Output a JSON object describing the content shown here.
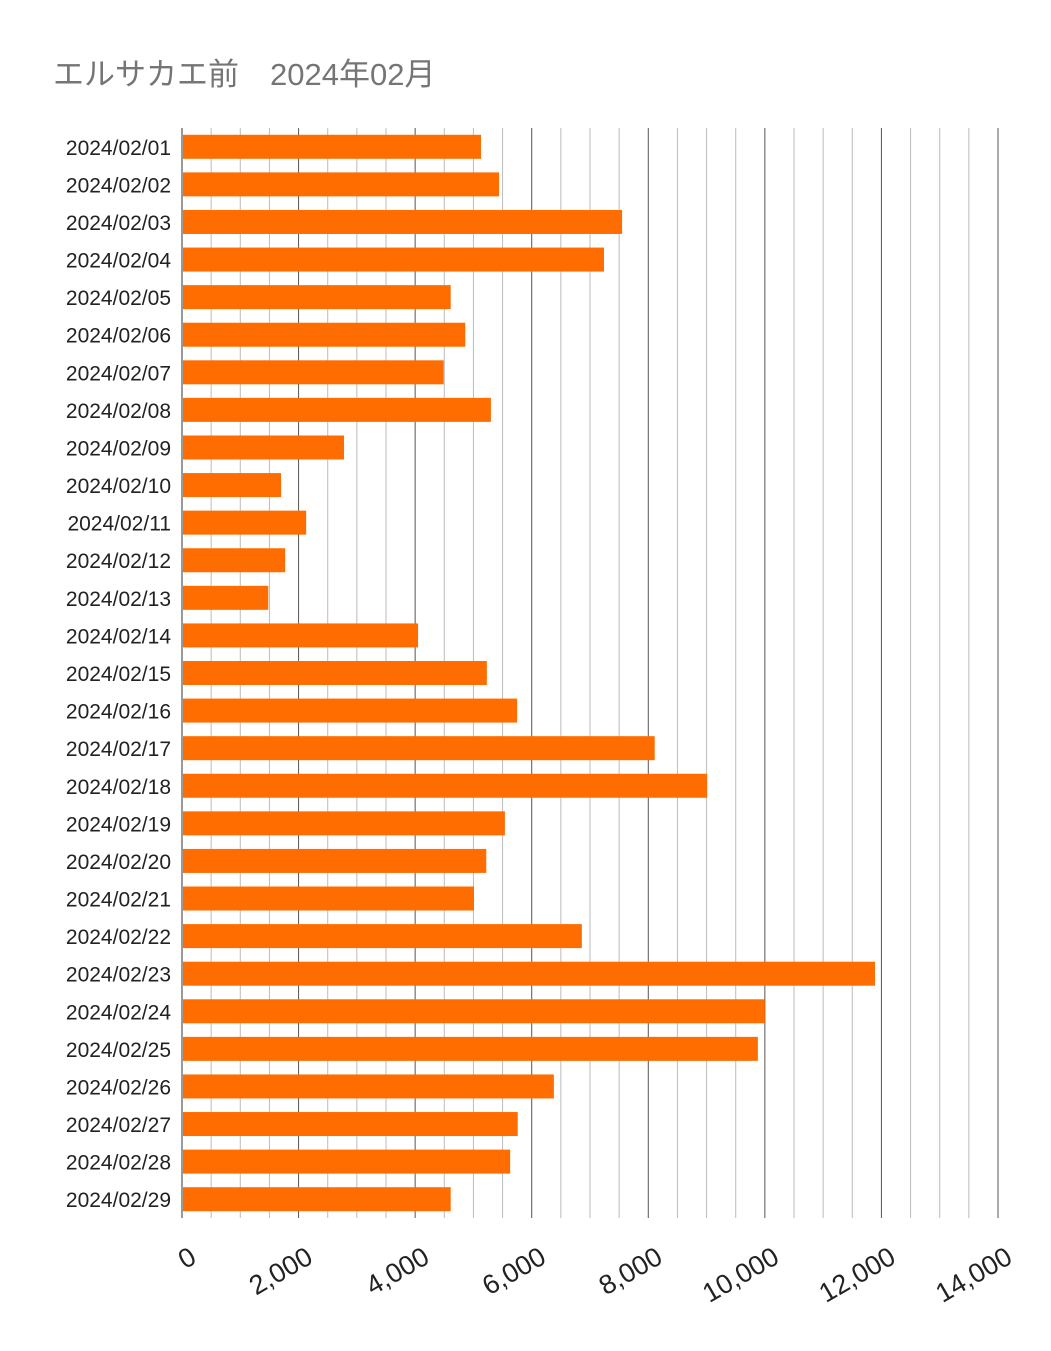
{
  "chart_data": {
    "type": "bar",
    "orientation": "horizontal",
    "title": "エルサカエ前　2024年02月",
    "xlabel": "",
    "ylabel": "",
    "xlim": [
      0,
      14000
    ],
    "x_ticks": [
      "0",
      "2,000",
      "4,000",
      "6,000",
      "8,000",
      "10,000",
      "12,000",
      "14,000"
    ],
    "x_tick_values": [
      0,
      2000,
      4000,
      6000,
      8000,
      10000,
      12000,
      14000
    ],
    "minor_grid_step": 500,
    "grid": true,
    "legend": "none",
    "bar_color": "#ff6d01",
    "categories": [
      "2024/02/01",
      "2024/02/02",
      "2024/02/03",
      "2024/02/04",
      "2024/02/05",
      "2024/02/06",
      "2024/02/07",
      "2024/02/08",
      "2024/02/09",
      "2024/02/10",
      "2024/02/11",
      "2024/02/12",
      "2024/02/13",
      "2024/02/14",
      "2024/02/15",
      "2024/02/16",
      "2024/02/17",
      "2024/02/18",
      "2024/02/19",
      "2024/02/20",
      "2024/02/21",
      "2024/02/22",
      "2024/02/23",
      "2024/02/24",
      "2024/02/25",
      "2024/02/26",
      "2024/02/27",
      "2024/02/28",
      "2024/02/29"
    ],
    "values": [
      5130,
      5440,
      7550,
      7240,
      4610,
      4860,
      4490,
      5300,
      2780,
      1700,
      2130,
      1770,
      1480,
      4050,
      5230,
      5750,
      8110,
      9010,
      5540,
      5220,
      5010,
      6860,
      11890,
      10000,
      9880,
      6380,
      5760,
      5630,
      4610
    ]
  }
}
